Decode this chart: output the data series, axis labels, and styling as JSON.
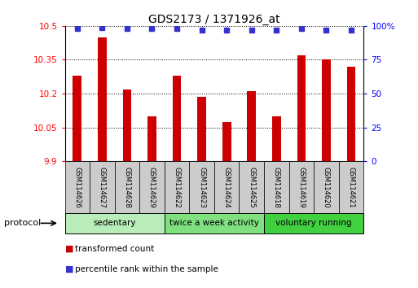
{
  "title": "GDS2173 / 1371926_at",
  "samples": [
    "GSM114626",
    "GSM114627",
    "GSM114628",
    "GSM114629",
    "GSM114622",
    "GSM114623",
    "GSM114624",
    "GSM114625",
    "GSM114618",
    "GSM114619",
    "GSM114620",
    "GSM114621"
  ],
  "transformed_count": [
    10.28,
    10.45,
    10.22,
    10.1,
    10.28,
    10.185,
    10.075,
    10.21,
    10.1,
    10.37,
    10.35,
    10.32
  ],
  "percentile_rank": [
    98,
    99,
    98,
    98,
    98,
    97,
    97,
    97,
    97,
    98,
    97,
    97
  ],
  "y_min": 9.9,
  "y_max": 10.5,
  "y_ticks": [
    9.9,
    10.05,
    10.2,
    10.35,
    10.5
  ],
  "y_tick_labels": [
    "9.9",
    "10.05",
    "10.2",
    "10.35",
    "10.5"
  ],
  "y2_ticks": [
    0,
    25,
    50,
    75,
    100
  ],
  "y2_tick_labels": [
    "0",
    "25",
    "50",
    "75",
    "100%"
  ],
  "groups": [
    {
      "label": "sedentary",
      "start": 0,
      "end": 4,
      "color": "#b8ecb8"
    },
    {
      "label": "twice a week activity",
      "start": 4,
      "end": 8,
      "color": "#80e080"
    },
    {
      "label": "voluntary running",
      "start": 8,
      "end": 12,
      "color": "#40d040"
    }
  ],
  "bar_color": "#cc0000",
  "dot_color": "#3333cc",
  "bg_color": "#ffffff",
  "sample_box_color": "#cccccc",
  "protocol_label": "protocol",
  "legend_items": [
    {
      "color": "#cc0000",
      "label": "transformed count"
    },
    {
      "color": "#3333cc",
      "label": "percentile rank within the sample"
    }
  ]
}
